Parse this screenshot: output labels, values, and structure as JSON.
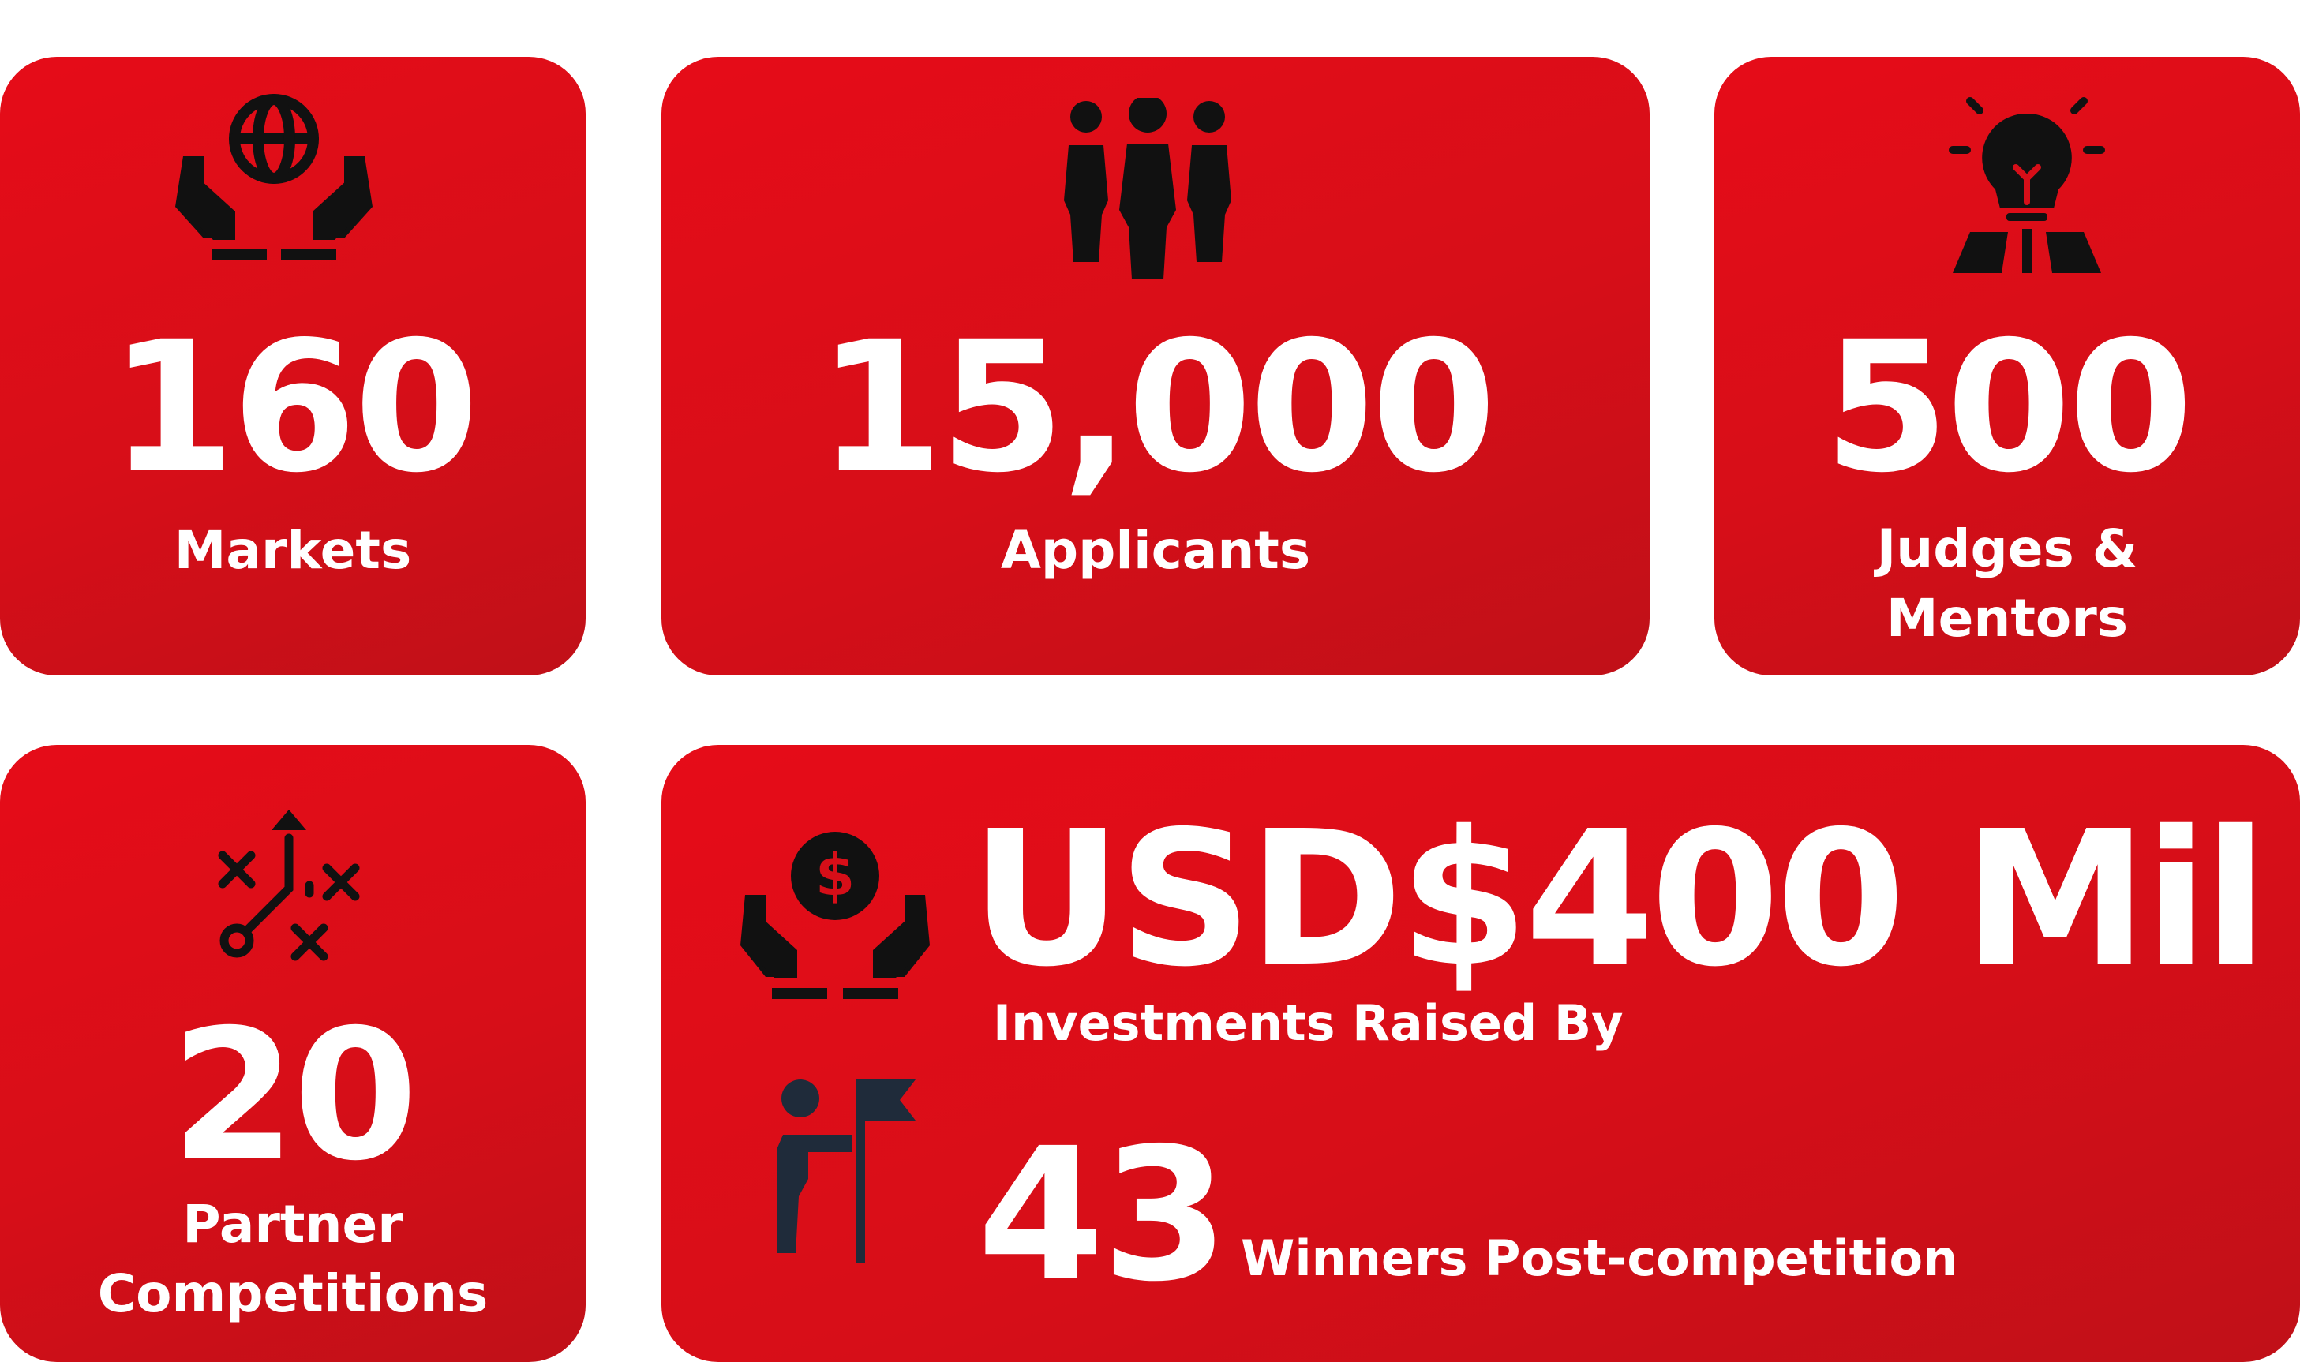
{
  "theme": {
    "card_color": "#d70e18",
    "icon_color": "#111111",
    "winner_icon_color": "#1f2b3a",
    "text_color": "#ffffff"
  },
  "cards": {
    "markets": {
      "value": "160",
      "label": "Markets",
      "icon": "globe-in-hands-icon"
    },
    "applicants": {
      "value": "15,000",
      "label": "Applicants",
      "icon": "people-group-icon"
    },
    "judges": {
      "value": "500",
      "label_lines": [
        "Judges &",
        "Mentors"
      ],
      "icon": "lightbulb-mentor-icon"
    },
    "partners": {
      "value": "20",
      "label_lines": [
        "Partner",
        "Competitions"
      ],
      "icon": "strategy-play-icon"
    },
    "investments": {
      "amount": "USD$400 Mil",
      "label": "Investments Raised By",
      "winners_count": "43",
      "winners_label": "Winners Post-competition",
      "icon": "money-in-hands-icon",
      "winner_icon": "person-with-flag-icon"
    }
  }
}
